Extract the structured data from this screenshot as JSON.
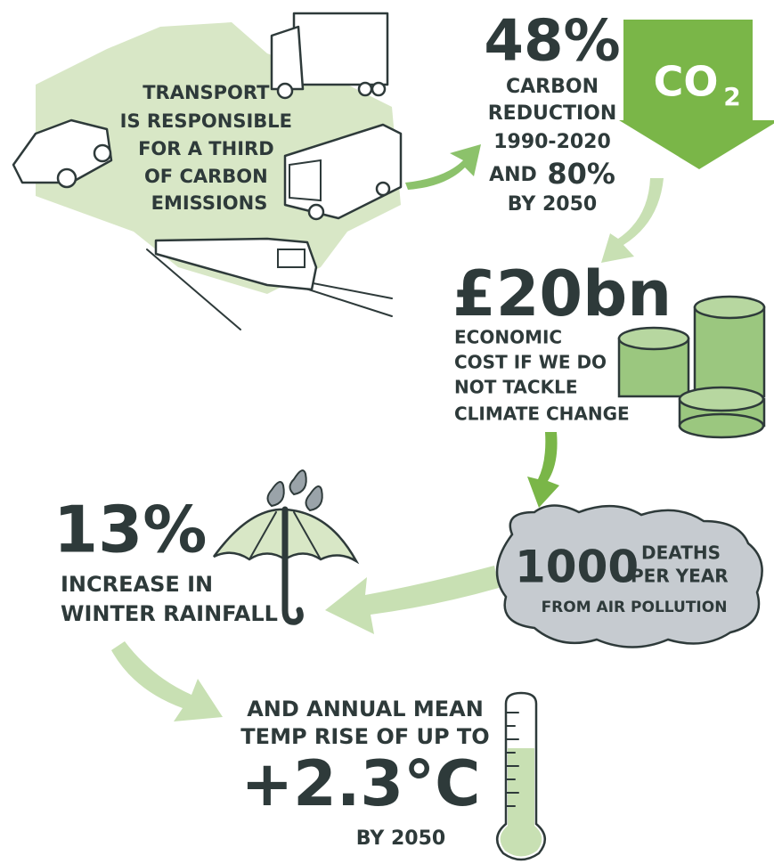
{
  "transport": {
    "lines": [
      "TRANSPORT",
      "IS RESPONSIBLE",
      "FOR A THIRD",
      "OF CARBON",
      "EMISSIONS"
    ]
  },
  "carbon": {
    "headline": "48%",
    "lines": [
      "CARBON",
      "REDUCTION",
      "1990-2020"
    ],
    "and": "AND",
    "target": "80%",
    "by": "BY 2050",
    "badge": "CO",
    "badge_sub": "2"
  },
  "cost": {
    "headline": "£20bn",
    "lines": [
      "ECONOMIC",
      "COST IF WE DO",
      "NOT TACKLE",
      "CLIMATE CHANGE"
    ]
  },
  "pollution": {
    "headline": "1000",
    "line1": "DEATHS",
    "line2": "PER YEAR",
    "line3": "FROM AIR POLLUTION"
  },
  "rainfall": {
    "headline": "13%",
    "lines": [
      "INCREASE IN",
      "WINTER RAINFALL"
    ]
  },
  "temperature": {
    "lines": [
      "AND ANNUAL MEAN",
      "TEMP RISE OF UP TO"
    ],
    "headline": "+2.3°C",
    "by": "BY 2050"
  }
}
